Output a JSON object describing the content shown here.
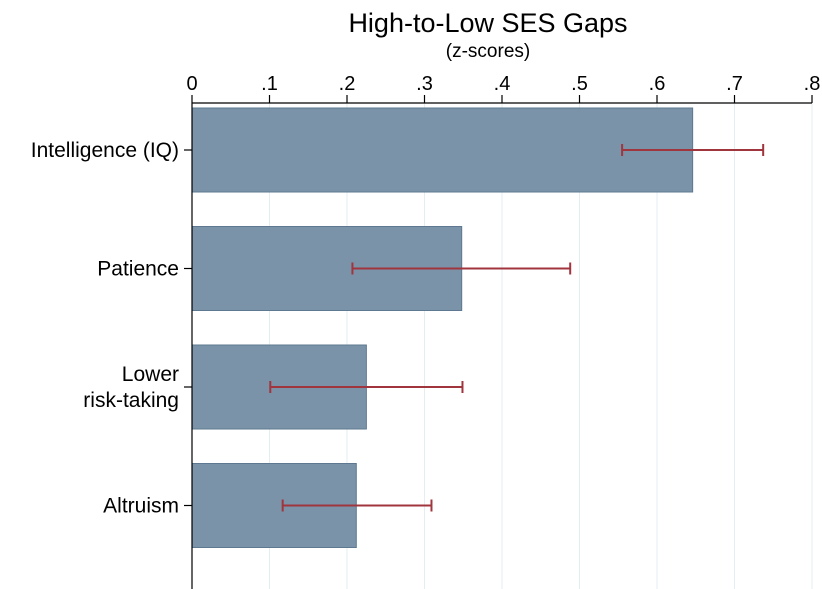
{
  "chart_data": {
    "type": "bar",
    "orientation": "horizontal",
    "title": "High-to-Low SES Gaps",
    "subtitle": "(z-scores)",
    "xlabel": "",
    "ylabel": "",
    "xlim": [
      0,
      0.8
    ],
    "x_ticks": [
      0,
      0.1,
      0.2,
      0.3,
      0.4,
      0.5,
      0.6,
      0.7,
      0.8
    ],
    "x_tick_labels": [
      "0",
      ".1",
      ".2",
      ".3",
      ".4",
      ".5",
      ".6",
      ".7",
      ".8"
    ],
    "x_axis_position": "top",
    "grid": true,
    "bar_color": "#7a93a9",
    "bar_edge_color": "#5d7890",
    "error_bar_color": "#a0353d",
    "grid_color": "#e3eef3",
    "categories": [
      [
        "Intelligence (IQ)"
      ],
      [
        "Patience"
      ],
      [
        "Lower",
        "risk-taking"
      ],
      [
        "Altruism"
      ]
    ],
    "values": [
      0.646,
      0.348,
      0.225,
      0.212
    ],
    "ci_low": [
      0.555,
      0.207,
      0.101,
      0.117
    ],
    "ci_high": [
      0.737,
      0.488,
      0.349,
      0.309
    ]
  }
}
